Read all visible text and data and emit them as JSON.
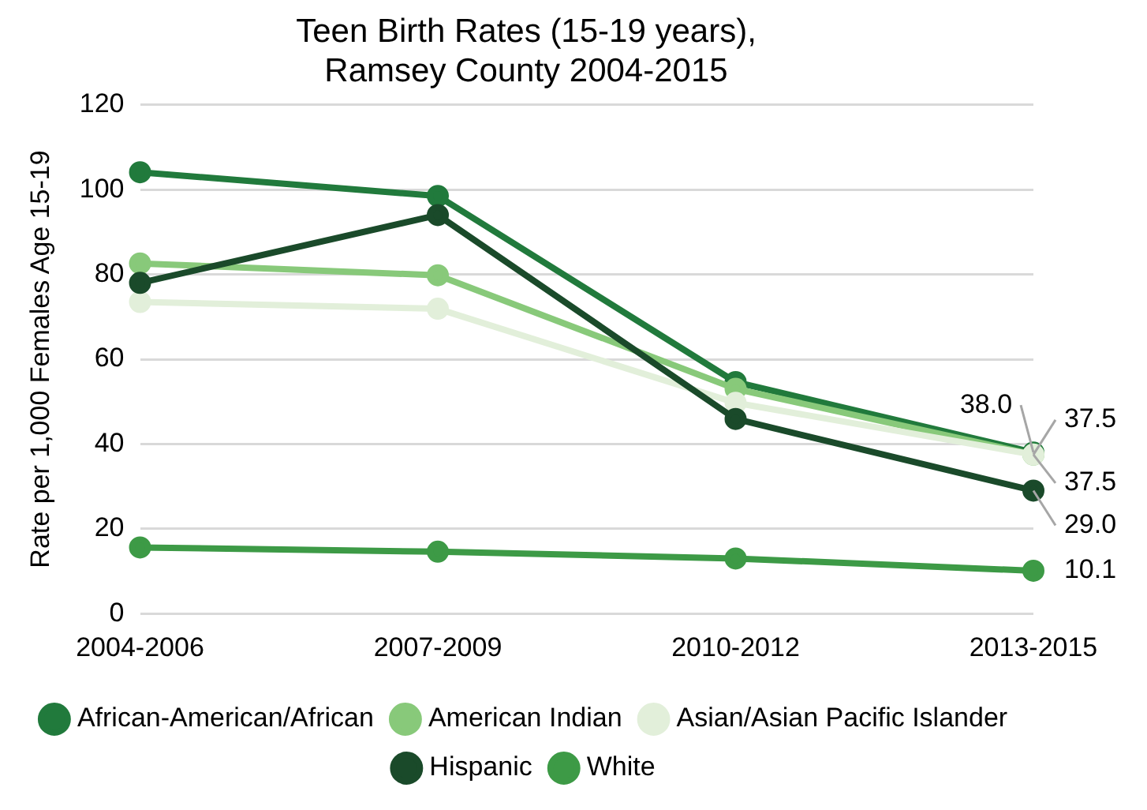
{
  "chart_data": {
    "type": "line",
    "title": "Teen Birth Rates (15-19 years), Ramsey County 2004-2015",
    "ylabel": "Rate per 1,000 Females Age 15-19",
    "categories": [
      "2004-2006",
      "2007-2009",
      "2010-2012",
      "2013-2015"
    ],
    "series": [
      {
        "name": "African-American/African",
        "color": "#217a3c",
        "values": [
          104.1,
          98.5,
          54.6,
          38.0
        ],
        "value_labels": [
          null,
          null,
          null,
          "38.0"
        ]
      },
      {
        "name": "American Indian",
        "color": "#88c97a",
        "values": [
          82.6,
          79.8,
          53.0,
          37.5
        ],
        "value_labels": [
          null,
          null,
          null,
          "37.5"
        ]
      },
      {
        "name": "Asian/Asian Pacific Islander",
        "color": "#e2efda",
        "values": [
          73.5,
          71.9,
          49.7,
          37.5
        ],
        "value_labels": [
          null,
          null,
          null,
          "37.5"
        ]
      },
      {
        "name": "Hispanic",
        "color": "#1a4a2a",
        "values": [
          78.0,
          94.0,
          45.9,
          29.0
        ],
        "value_labels": [
          null,
          null,
          null,
          "29.0"
        ]
      },
      {
        "name": "White",
        "color": "#3d9a46",
        "values": [
          15.6,
          14.6,
          13.0,
          10.1
        ],
        "value_labels": [
          null,
          null,
          null,
          "10.1"
        ]
      }
    ],
    "ylim": [
      0,
      120
    ],
    "yticks": [
      0,
      20,
      40,
      60,
      80,
      100,
      120
    ],
    "grid": "y",
    "legend": "bottom",
    "marker": "circle",
    "line_style": "solid"
  }
}
